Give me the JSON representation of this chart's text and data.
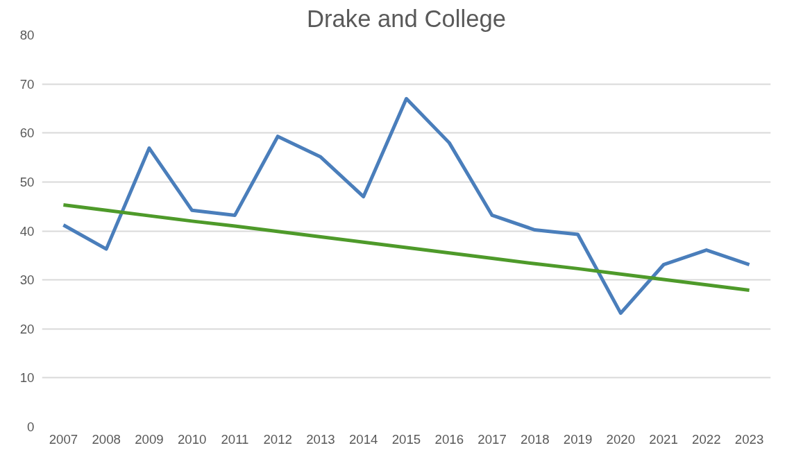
{
  "chart_data": {
    "type": "line",
    "title": "Drake and College",
    "categories": [
      "2007",
      "2008",
      "2009",
      "2010",
      "2011",
      "2012",
      "2013",
      "2014",
      "2015",
      "2016",
      "2017",
      "2018",
      "2019",
      "2020",
      "2021",
      "2022",
      "2023"
    ],
    "series": [
      {
        "color": "#4a7ebb",
        "values": [
          41.2,
          36.3,
          56.9,
          44.2,
          43.2,
          59.3,
          55.1,
          47,
          67,
          58,
          43.2,
          40.2,
          39.3,
          23.2,
          33.1,
          36.1,
          33.1
        ]
      },
      {
        "type": "line",
        "color": "#4e9a2a",
        "values": [
          45.3,
          44.2,
          43.1,
          42.0,
          41.0,
          39.9,
          38.8,
          37.7,
          36.6,
          35.5,
          34.4,
          33.3,
          32.3,
          31.2,
          30.1,
          29.0,
          27.9
        ]
      }
    ],
    "ylim": [
      0,
      80
    ],
    "yticks": [
      0,
      10,
      20,
      30,
      40,
      50,
      60,
      70,
      80
    ],
    "grid": "y",
    "marker": "none",
    "line_style": "solid"
  }
}
